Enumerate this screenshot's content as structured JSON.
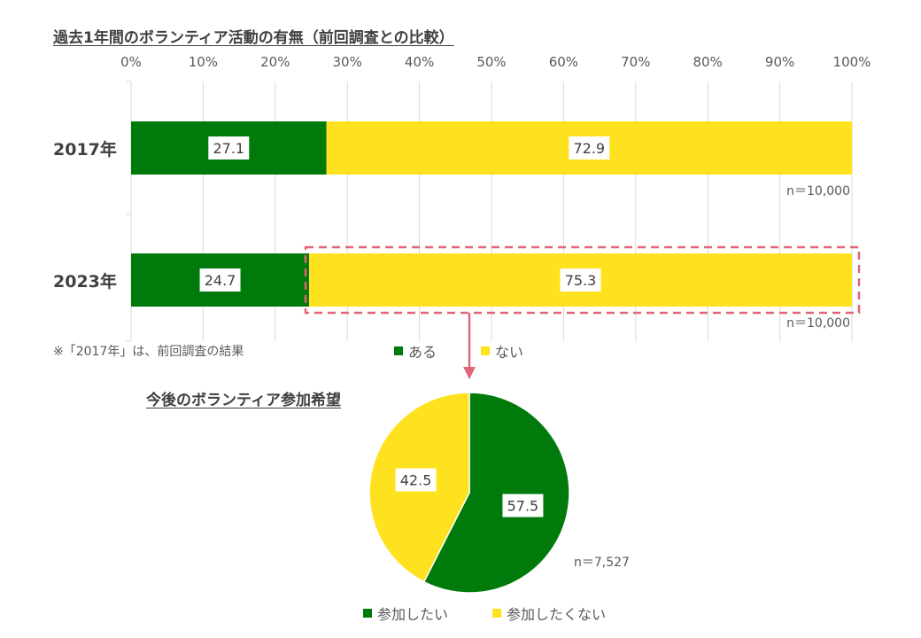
{
  "colors": {
    "green": "#007A0A",
    "yellow": "#FFE21F",
    "grid": "#D9D9D9",
    "dash": "#E06677",
    "arrow": "#E06677"
  },
  "chart_data": [
    {
      "type": "bar",
      "orientation": "horizontal",
      "stacked": true,
      "title": "過去1年間のボランティア活動の有無（前回調査との比較）",
      "categories": [
        "2017年",
        "2023年"
      ],
      "series": [
        {
          "name": "ある",
          "values": [
            27.1,
            24.7
          ],
          "color": "#007A0A"
        },
        {
          "name": "ない",
          "values": [
            72.9,
            75.3
          ],
          "color": "#FFE21F"
        }
      ],
      "x_ticks": [
        "0%",
        "10%",
        "20%",
        "30%",
        "40%",
        "50%",
        "60%",
        "70%",
        "80%",
        "90%",
        "100%"
      ],
      "xlim": [
        0,
        100
      ],
      "sample_sizes": [
        "n＝10,000",
        "n＝10,000"
      ],
      "grid": true,
      "legend": "bottom"
    },
    {
      "type": "pie",
      "title": "今後のボランティア参加希望",
      "slices": [
        {
          "name": "参加したい",
          "value": 57.5,
          "color": "#007A0A"
        },
        {
          "name": "参加したくない",
          "value": 42.5,
          "color": "#FFE21F"
        }
      ],
      "sample_size": "n＝7,527",
      "legend": "bottom"
    }
  ],
  "footnote": "※「2017年」は、前回調査の結果"
}
